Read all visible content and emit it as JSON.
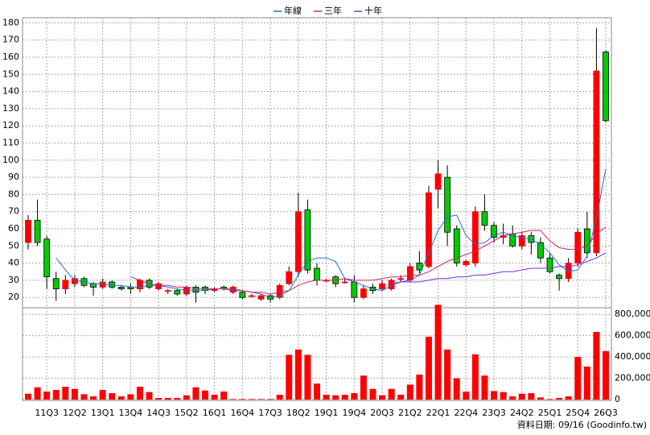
{
  "chart_data": [
    {
      "type": "candlestick",
      "categories": [
        null,
        null,
        "11Q3",
        null,
        null,
        "12Q2",
        null,
        null,
        "13Q1",
        null,
        null,
        "13Q4",
        null,
        null,
        "14Q3",
        null,
        null,
        "15Q2",
        null,
        null,
        "16Q1",
        null,
        null,
        "16Q4",
        null,
        null,
        "17Q3",
        null,
        null,
        "18Q2",
        null,
        null,
        "19Q1",
        null,
        null,
        "19Q4",
        null,
        null,
        "20Q3",
        null,
        null,
        "21Q2",
        null,
        null,
        "22Q1",
        null,
        null,
        "22Q4",
        null,
        null,
        "23Q3",
        null,
        null,
        "24Q2",
        null,
        null,
        "25Q1",
        null,
        null,
        "25Q4",
        null,
        null,
        "26Q3"
      ],
      "open": [
        52,
        65,
        54,
        31,
        25,
        28,
        31,
        28,
        26,
        29,
        26,
        26,
        25,
        30,
        25,
        24,
        24,
        22,
        26,
        26,
        24,
        26,
        23,
        23,
        21,
        19,
        21,
        20,
        28,
        35,
        71,
        37,
        30,
        32,
        29,
        29,
        20,
        26,
        25,
        25,
        31,
        30,
        40,
        38,
        83,
        90,
        60,
        39,
        40,
        70,
        62,
        55,
        57,
        50,
        56,
        52,
        43,
        33,
        31,
        40,
        60,
        46,
        163
      ],
      "high": [
        68,
        77,
        56,
        35,
        33,
        33,
        32,
        29,
        31,
        30,
        27,
        28,
        31,
        31,
        29,
        25,
        25,
        27,
        27,
        27,
        26,
        27,
        27,
        24,
        22,
        22,
        22,
        28,
        38,
        81,
        77,
        40,
        31,
        33,
        31,
        33,
        27,
        28,
        30,
        31,
        33,
        40,
        47,
        85,
        100,
        97,
        62,
        42,
        73,
        80,
        64,
        63,
        62,
        58,
        58,
        55,
        46,
        34,
        43,
        60,
        70,
        177,
        164
      ],
      "low": [
        48,
        50,
        25,
        18,
        22,
        26,
        26,
        21,
        25,
        25,
        24,
        22,
        23,
        25,
        24,
        22,
        21,
        21,
        17,
        22,
        23,
        24,
        22,
        19,
        20,
        18,
        17,
        19,
        27,
        32,
        34,
        27,
        29,
        26,
        28,
        17,
        19,
        22,
        24,
        24,
        29,
        29,
        34,
        37,
        72,
        50,
        38,
        38,
        38,
        59,
        52,
        51,
        49,
        48,
        45,
        40,
        34,
        24,
        29,
        38,
        43,
        44,
        122
      ],
      "close": [
        65,
        52,
        32,
        25,
        30,
        31,
        27,
        26,
        29,
        26,
        25,
        25,
        30,
        26,
        28,
        24,
        22,
        26,
        23,
        24,
        25,
        25,
        26,
        20,
        21,
        21,
        19,
        27,
        35,
        70,
        36,
        30,
        30,
        28,
        29,
        20,
        25,
        24,
        28,
        30,
        31,
        38,
        36,
        81,
        92,
        58,
        40,
        41,
        70,
        62,
        55,
        56,
        50,
        56,
        52,
        43,
        35,
        31,
        40,
        58,
        46,
        152,
        123
      ],
      "up_color": "#ff0000",
      "down_color": "#00cc00",
      "series": [
        {
          "name": "年線",
          "color": "#1e6fd0",
          "values": [
            null,
            null,
            null,
            43,
            36,
            30,
            29,
            28,
            28,
            27,
            27,
            26,
            26,
            27,
            27,
            26,
            25,
            24,
            24,
            24,
            25,
            25,
            25,
            24,
            23,
            22,
            20,
            21,
            24,
            33,
            41,
            43,
            43,
            41,
            31,
            29,
            27,
            25,
            24,
            27,
            29,
            30,
            33,
            46,
            59,
            67,
            68,
            56,
            51,
            52,
            56,
            58,
            56,
            55,
            54,
            51,
            46,
            39,
            35,
            36,
            44,
            66,
            95
          ]
        },
        {
          "name": "三年",
          "color": "#d0206a",
          "values": [
            null,
            null,
            null,
            null,
            null,
            null,
            null,
            null,
            null,
            null,
            null,
            32,
            30,
            28,
            27,
            27,
            26,
            26,
            25,
            25,
            25,
            25,
            24,
            24,
            23,
            23,
            22,
            23,
            24,
            27,
            29,
            30,
            30,
            30,
            31,
            30,
            30,
            30,
            31,
            32,
            32,
            33,
            33,
            35,
            38,
            41,
            43,
            45,
            47,
            50,
            53,
            56,
            57,
            58,
            59,
            59,
            53,
            49,
            48,
            48,
            50,
            57,
            61
          ]
        },
        {
          "name": "十年",
          "color": "#7a2ee0",
          "values": [
            null,
            null,
            null,
            null,
            null,
            null,
            null,
            null,
            null,
            null,
            null,
            null,
            null,
            null,
            null,
            null,
            null,
            null,
            null,
            null,
            null,
            null,
            null,
            null,
            null,
            null,
            null,
            null,
            null,
            null,
            null,
            null,
            null,
            null,
            null,
            null,
            null,
            null,
            null,
            28,
            29,
            29,
            29,
            30,
            31,
            31,
            32,
            32,
            33,
            33,
            34,
            35,
            35,
            36,
            37,
            37,
            37,
            38,
            38,
            39,
            41,
            43,
            46
          ]
        }
      ],
      "ylim": [
        14,
        183
      ],
      "yticks": [
        20,
        30,
        40,
        50,
        60,
        70,
        80,
        90,
        100,
        110,
        120,
        130,
        140,
        150,
        160,
        170,
        180
      ],
      "grid": true
    },
    {
      "type": "bar",
      "values": [
        55000,
        115000,
        75000,
        90000,
        120000,
        100000,
        50000,
        30000,
        90000,
        60000,
        30000,
        50000,
        120000,
        70000,
        15000,
        15000,
        15000,
        40000,
        115000,
        85000,
        45000,
        75000,
        5000,
        5000,
        5000,
        5000,
        5000,
        45000,
        420000,
        470000,
        420000,
        150000,
        45000,
        40000,
        45000,
        60000,
        225000,
        100000,
        40000,
        100000,
        45000,
        140000,
        235000,
        590000,
        890000,
        470000,
        200000,
        75000,
        425000,
        225000,
        80000,
        70000,
        30000,
        55000,
        60000,
        20000,
        5000,
        15000,
        30000,
        400000,
        310000,
        635000,
        455000
      ],
      "color": "#ff0000",
      "ylim": [
        0,
        900000
      ],
      "yticks": [
        {
          "value": 0,
          "label": "0"
        },
        {
          "value": 200000,
          "label": "200,000"
        },
        {
          "value": 400000,
          "label": "400,000"
        },
        {
          "value": 600000,
          "label": "600,000"
        },
        {
          "value": 800000,
          "label": "800,000"
        }
      ],
      "grid": true
    }
  ],
  "footer": "資料日期: 09/16 (Goodinfo.tw)"
}
